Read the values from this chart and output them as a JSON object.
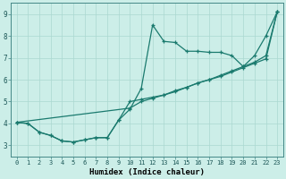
{
  "xlabel": "Humidex (Indice chaleur)",
  "bg_color": "#cceee8",
  "line_color": "#1a7a6e",
  "xlim": [
    -0.5,
    23.5
  ],
  "ylim": [
    2.5,
    9.5
  ],
  "xticks": [
    0,
    1,
    2,
    3,
    4,
    5,
    6,
    7,
    8,
    9,
    10,
    11,
    12,
    13,
    14,
    15,
    16,
    17,
    18,
    19,
    20,
    21,
    22,
    23
  ],
  "yticks": [
    3,
    4,
    5,
    6,
    7,
    8,
    9
  ],
  "series1_x": [
    0,
    1,
    2,
    3,
    4,
    5,
    6,
    7,
    8,
    9,
    10,
    11,
    12,
    13,
    14,
    15,
    16,
    17,
    18,
    19,
    20,
    21,
    22,
    23
  ],
  "series1_y": [
    4.05,
    4.0,
    3.6,
    3.45,
    3.2,
    3.15,
    3.25,
    3.35,
    3.35,
    4.15,
    4.65,
    5.6,
    8.5,
    7.75,
    7.7,
    7.3,
    7.3,
    7.25,
    7.25,
    7.1,
    6.6,
    7.1,
    8.0,
    9.1
  ],
  "series2_x": [
    0,
    1,
    2,
    3,
    4,
    5,
    6,
    7,
    8,
    9,
    10,
    11,
    12,
    13,
    14,
    15,
    16,
    17,
    18,
    19,
    20,
    21,
    22,
    23
  ],
  "series2_y": [
    4.05,
    4.0,
    3.6,
    3.45,
    3.2,
    3.15,
    3.25,
    3.35,
    3.35,
    4.15,
    5.0,
    5.1,
    5.2,
    5.3,
    5.45,
    5.65,
    5.85,
    6.0,
    6.2,
    6.4,
    6.6,
    6.8,
    7.1,
    9.1
  ],
  "series3_x": [
    0,
    10,
    11,
    12,
    13,
    14,
    15,
    16,
    17,
    18,
    19,
    20,
    21,
    22,
    23
  ],
  "series3_y": [
    4.05,
    4.7,
    5.0,
    5.15,
    5.3,
    5.5,
    5.65,
    5.85,
    6.0,
    6.15,
    6.35,
    6.55,
    6.75,
    6.95,
    9.1
  ],
  "xtick_fontsize": 5.0,
  "ytick_fontsize": 5.5,
  "xlabel_fontsize": 6.5,
  "grid_color": "#aad8d0",
  "spine_color": "#448888",
  "lw": 0.9,
  "ms": 2.5
}
